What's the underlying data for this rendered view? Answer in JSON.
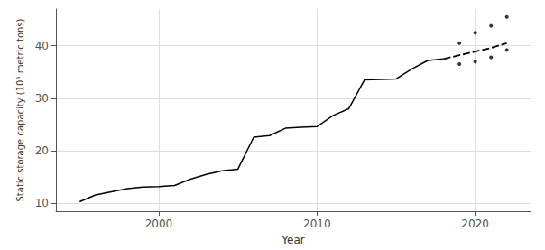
{
  "chart_data": {
    "type": "line",
    "xlabel": "Year",
    "ylabel": "Static storage capacity (10⁶ metric tons)",
    "xlim": [
      1993.5,
      2023.5
    ],
    "ylim": [
      8.5,
      47
    ],
    "xticks": [
      2000,
      2010,
      2020
    ],
    "yticks": [
      10,
      20,
      30,
      40
    ],
    "grid": true,
    "series": [
      {
        "type": "line",
        "line_style": "solid",
        "color": "#000000",
        "x": [
          1995,
          1996,
          1997,
          1998,
          1999,
          2000,
          2001,
          2002,
          2003,
          2004,
          2005,
          2006,
          2007,
          2008,
          2009,
          2010,
          2011,
          2012,
          2013,
          2014,
          2015,
          2016,
          2017,
          2018
        ],
        "values": [
          10.3,
          11.6,
          12.2,
          12.8,
          13.1,
          13.2,
          13.4,
          14.6,
          15.5,
          16.2,
          16.5,
          22.6,
          22.9,
          24.3,
          24.5,
          24.6,
          26.7,
          28.0,
          33.5,
          33.6,
          33.7,
          35.6,
          37.2,
          37.5
        ]
      },
      {
        "type": "line",
        "line_style": "dashed",
        "color": "#000000",
        "x": [
          2018,
          2019,
          2020,
          2021,
          2022
        ],
        "values": [
          37.5,
          38.2,
          38.9,
          39.6,
          40.5
        ]
      },
      {
        "type": "scatter",
        "marker": "dot",
        "color": "#000000",
        "x": [
          2019,
          2020,
          2021,
          2022
        ],
        "values": [
          40.5,
          42.5,
          43.8,
          45.5
        ]
      },
      {
        "type": "scatter",
        "marker": "dot",
        "color": "#000000",
        "x": [
          2019,
          2020,
          2021,
          2022
        ],
        "values": [
          36.5,
          37.0,
          37.8,
          39.2
        ]
      }
    ]
  }
}
